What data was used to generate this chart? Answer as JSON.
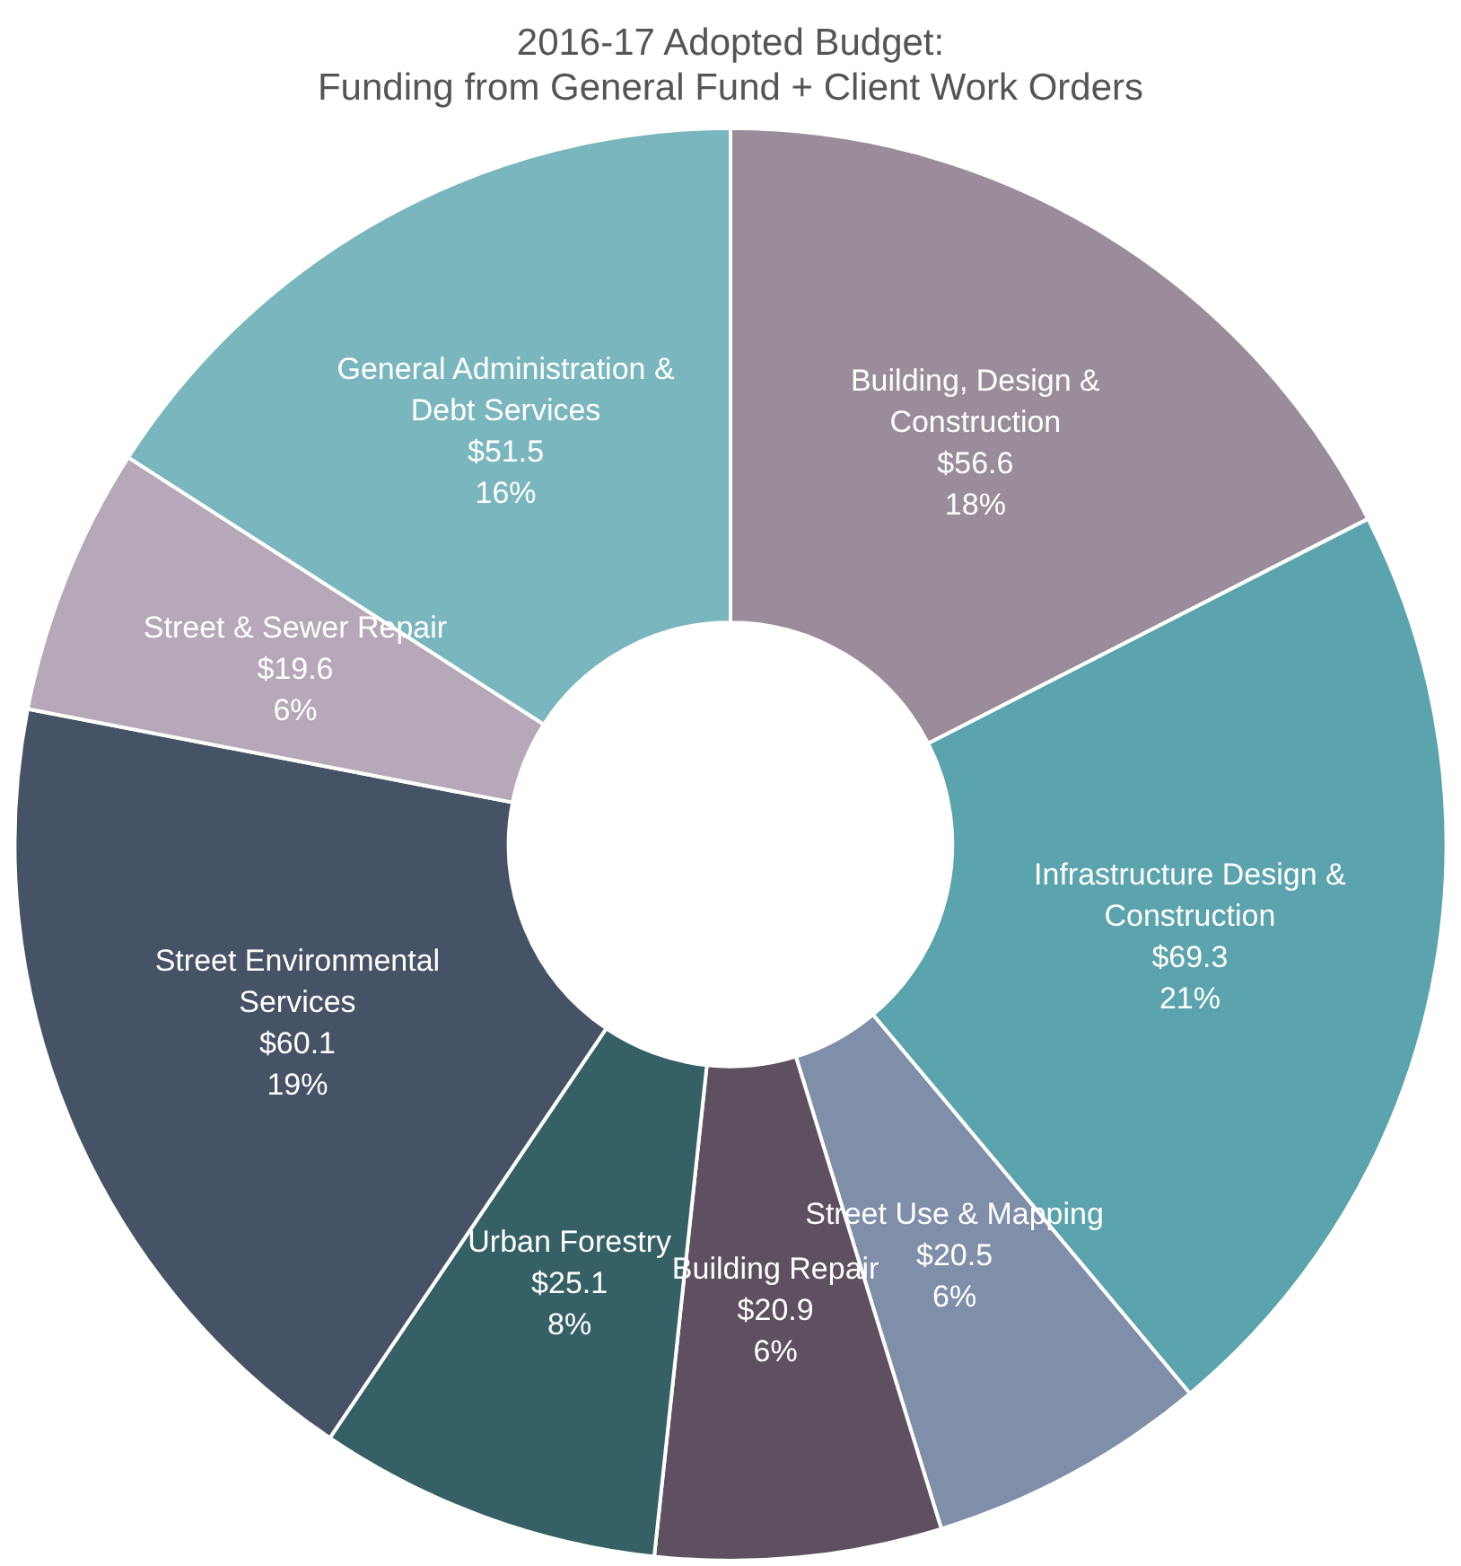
{
  "chart_data": {
    "type": "donut",
    "title": "2016-17 Adopted Budget:\nFunding from General Fund + Client Work Orders",
    "categories": [
      "Building, Design & Construction",
      "Infrastructure Design & Construction",
      "Street Use & Mapping",
      "Building Repair",
      "Urban Forestry",
      "Street Environmental Services",
      "Street & Sewer Repair",
      "General Administration & Debt Services"
    ],
    "values": [
      56.6,
      69.3,
      20.5,
      20.9,
      25.1,
      60.1,
      19.6,
      51.5
    ],
    "value_labels": [
      "$56.6\n18%",
      "$69.3\n21%",
      "$20.5\n6%",
      "$20.9\n6%",
      "$25.1\n8%",
      "$60.1\n19%",
      "$19.6\n6%",
      "$51.5\n16%"
    ],
    "colors": [
      "#9b8c9c",
      "#5ba3ad",
      "#7f8ea9",
      "#5e5060",
      "#356066",
      "#465266",
      "#b6a8b8",
      "#7ab6bd"
    ],
    "legend": false
  }
}
